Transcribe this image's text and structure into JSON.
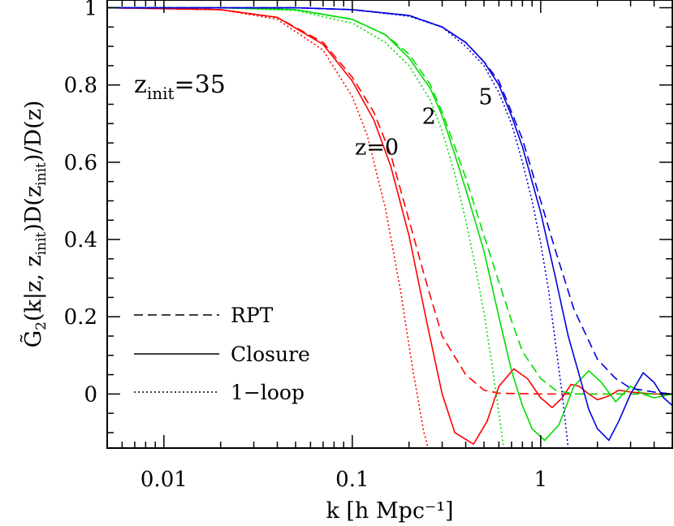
{
  "chart_data": {
    "type": "line",
    "xscale": "log",
    "xlim": [
      0.005,
      5
    ],
    "ylim": [
      -0.14,
      1.02
    ],
    "xlabel": "k [h Mpc⁻¹]",
    "ylabel": {
      "G": "G̃",
      "sub2": "2",
      "p1": "(k|z,  z",
      "init1": "init",
      "p2": ")D(z",
      "init2": "init",
      "p3": ")/D(z)"
    },
    "xticks": [
      {
        "v": 0.01,
        "label": "0.01"
      },
      {
        "v": 0.1,
        "label": "0.1"
      },
      {
        "v": 1,
        "label": "1"
      }
    ],
    "yticks": [
      {
        "v": 0,
        "label": "0"
      },
      {
        "v": 0.2,
        "label": "0.2"
      },
      {
        "v": 0.4,
        "label": "0.4"
      },
      {
        "v": 0.6,
        "label": "0.6"
      },
      {
        "v": 0.8,
        "label": "0.8"
      },
      {
        "v": 1,
        "label": "1"
      }
    ],
    "zinit_label": {
      "z": "z",
      "sub": "init",
      "value": "=35"
    },
    "curve_labels": [
      {
        "text": "z=0",
        "k": 0.135,
        "y": 0.62
      },
      {
        "text": "2",
        "k": 0.255,
        "y": 0.7
      },
      {
        "text": "5",
        "k": 0.51,
        "y": 0.75
      }
    ],
    "legend": {
      "placement": "lower-left",
      "entries": [
        {
          "label": "RPT",
          "dash": "dashed"
        },
        {
          "label": "Closure",
          "dash": "solid"
        },
        {
          "label": "1−loop",
          "dash": "dotted"
        }
      ]
    },
    "colors": {
      "z0": "#ff0000",
      "z2": "#00dd00",
      "z5": "#0000dd"
    },
    "series": [
      {
        "z": "0",
        "method": "RPT",
        "color": "#ff0000",
        "dash": "dashed",
        "points": [
          [
            0.005,
            1.0
          ],
          [
            0.02,
            0.995
          ],
          [
            0.04,
            0.975
          ],
          [
            0.07,
            0.91
          ],
          [
            0.1,
            0.82
          ],
          [
            0.13,
            0.73
          ],
          [
            0.16,
            0.62
          ],
          [
            0.2,
            0.45
          ],
          [
            0.25,
            0.28
          ],
          [
            0.3,
            0.15
          ],
          [
            0.4,
            0.05
          ],
          [
            0.5,
            0.01
          ],
          [
            0.6,
            0.002
          ],
          [
            1,
            0.0
          ],
          [
            5,
            0.0
          ]
        ]
      },
      {
        "z": "0",
        "method": "Closure",
        "color": "#ff0000",
        "dash": "solid",
        "points": [
          [
            0.005,
            1.0
          ],
          [
            0.02,
            0.995
          ],
          [
            0.04,
            0.975
          ],
          [
            0.07,
            0.905
          ],
          [
            0.1,
            0.81
          ],
          [
            0.13,
            0.71
          ],
          [
            0.16,
            0.59
          ],
          [
            0.2,
            0.41
          ],
          [
            0.25,
            0.18
          ],
          [
            0.3,
            0.0
          ],
          [
            0.35,
            -0.1
          ],
          [
            0.44,
            -0.13
          ],
          [
            0.52,
            -0.07
          ],
          [
            0.6,
            0.02
          ],
          [
            0.72,
            0.065
          ],
          [
            0.85,
            0.04
          ],
          [
            1.0,
            -0.01
          ],
          [
            1.15,
            -0.035
          ],
          [
            1.3,
            -0.01
          ],
          [
            1.45,
            0.025
          ],
          [
            1.6,
            0.02
          ],
          [
            1.8,
            0.0
          ],
          [
            2.0,
            -0.015
          ],
          [
            2.3,
            -0.005
          ],
          [
            2.6,
            0.01
          ],
          [
            3.0,
            0.005
          ],
          [
            4.0,
            0.0
          ],
          [
            5.0,
            0.0
          ]
        ]
      },
      {
        "z": "0",
        "method": "1-loop",
        "color": "#ff0000",
        "dash": "dotted",
        "points": [
          [
            0.005,
            1.0
          ],
          [
            0.02,
            0.995
          ],
          [
            0.04,
            0.97
          ],
          [
            0.07,
            0.89
          ],
          [
            0.1,
            0.77
          ],
          [
            0.12,
            0.67
          ],
          [
            0.15,
            0.48
          ],
          [
            0.18,
            0.27
          ],
          [
            0.21,
            0.06
          ],
          [
            0.24,
            -0.1
          ],
          [
            0.26,
            -0.16
          ]
        ]
      },
      {
        "z": "2",
        "method": "RPT",
        "color": "#00dd00",
        "dash": "dashed",
        "points": [
          [
            0.005,
            1.0
          ],
          [
            0.02,
            1.0
          ],
          [
            0.05,
            0.995
          ],
          [
            0.1,
            0.97
          ],
          [
            0.15,
            0.93
          ],
          [
            0.2,
            0.88
          ],
          [
            0.26,
            0.8
          ],
          [
            0.3,
            0.73
          ],
          [
            0.35,
            0.64
          ],
          [
            0.4,
            0.56
          ],
          [
            0.5,
            0.41
          ],
          [
            0.6,
            0.29
          ],
          [
            0.7,
            0.19
          ],
          [
            0.8,
            0.11
          ],
          [
            1.0,
            0.04
          ],
          [
            1.2,
            0.01
          ],
          [
            1.5,
            0.0
          ],
          [
            5.0,
            0.0
          ]
        ]
      },
      {
        "z": "2",
        "method": "Closure",
        "color": "#00dd00",
        "dash": "solid",
        "points": [
          [
            0.005,
            1.0
          ],
          [
            0.02,
            1.0
          ],
          [
            0.05,
            0.995
          ],
          [
            0.1,
            0.97
          ],
          [
            0.15,
            0.93
          ],
          [
            0.2,
            0.87
          ],
          [
            0.26,
            0.79
          ],
          [
            0.3,
            0.72
          ],
          [
            0.35,
            0.62
          ],
          [
            0.4,
            0.53
          ],
          [
            0.5,
            0.37
          ],
          [
            0.6,
            0.2
          ],
          [
            0.7,
            0.06
          ],
          [
            0.8,
            -0.03
          ],
          [
            0.9,
            -0.09
          ],
          [
            1.05,
            -0.12
          ],
          [
            1.25,
            -0.08
          ],
          [
            1.5,
            0.02
          ],
          [
            1.8,
            0.06
          ],
          [
            2.1,
            0.03
          ],
          [
            2.5,
            -0.02
          ],
          [
            3.0,
            0.02
          ],
          [
            3.5,
            0.0
          ],
          [
            4.0,
            -0.01
          ],
          [
            5.0,
            0.0
          ]
        ]
      },
      {
        "z": "2",
        "method": "1-loop",
        "color": "#00dd00",
        "dash": "dotted",
        "points": [
          [
            0.005,
            1.0
          ],
          [
            0.02,
            1.0
          ],
          [
            0.05,
            0.993
          ],
          [
            0.1,
            0.96
          ],
          [
            0.15,
            0.91
          ],
          [
            0.2,
            0.85
          ],
          [
            0.26,
            0.76
          ],
          [
            0.3,
            0.68
          ],
          [
            0.35,
            0.57
          ],
          [
            0.4,
            0.45
          ],
          [
            0.45,
            0.33
          ],
          [
            0.5,
            0.21
          ],
          [
            0.55,
            0.08
          ],
          [
            0.6,
            -0.05
          ],
          [
            0.64,
            -0.15
          ]
        ]
      },
      {
        "z": "5",
        "method": "RPT",
        "color": "#0000dd",
        "dash": "dashed",
        "points": [
          [
            0.005,
            1.0
          ],
          [
            0.05,
            1.0
          ],
          [
            0.1,
            0.995
          ],
          [
            0.2,
            0.98
          ],
          [
            0.3,
            0.95
          ],
          [
            0.4,
            0.91
          ],
          [
            0.5,
            0.86
          ],
          [
            0.6,
            0.81
          ],
          [
            0.7,
            0.73
          ],
          [
            0.8,
            0.66
          ],
          [
            1.0,
            0.5
          ],
          [
            1.2,
            0.37
          ],
          [
            1.5,
            0.22
          ],
          [
            2.0,
            0.09
          ],
          [
            2.5,
            0.04
          ],
          [
            3.0,
            0.015
          ],
          [
            4.0,
            0.005
          ],
          [
            5.0,
            0.0
          ]
        ]
      },
      {
        "z": "5",
        "method": "Closure",
        "color": "#0000dd",
        "dash": "solid",
        "points": [
          [
            0.005,
            1.0
          ],
          [
            0.05,
            1.0
          ],
          [
            0.1,
            0.995
          ],
          [
            0.2,
            0.98
          ],
          [
            0.3,
            0.95
          ],
          [
            0.4,
            0.91
          ],
          [
            0.5,
            0.86
          ],
          [
            0.6,
            0.8
          ],
          [
            0.7,
            0.72
          ],
          [
            0.8,
            0.64
          ],
          [
            1.0,
            0.47
          ],
          [
            1.2,
            0.3
          ],
          [
            1.4,
            0.15
          ],
          [
            1.6,
            0.05
          ],
          [
            1.8,
            -0.04
          ],
          [
            2.0,
            -0.09
          ],
          [
            2.3,
            -0.12
          ],
          [
            2.6,
            -0.07
          ],
          [
            3.0,
            0.0
          ],
          [
            3.5,
            0.055
          ],
          [
            4.0,
            0.03
          ],
          [
            4.5,
            -0.01
          ],
          [
            5.0,
            -0.03
          ]
        ]
      },
      {
        "z": "5",
        "method": "1-loop",
        "color": "#0000dd",
        "dash": "dotted",
        "points": [
          [
            0.005,
            1.0
          ],
          [
            0.05,
            1.0
          ],
          [
            0.1,
            0.995
          ],
          [
            0.2,
            0.978
          ],
          [
            0.3,
            0.95
          ],
          [
            0.4,
            0.9
          ],
          [
            0.5,
            0.85
          ],
          [
            0.6,
            0.78
          ],
          [
            0.7,
            0.7
          ],
          [
            0.8,
            0.6
          ],
          [
            0.9,
            0.5
          ],
          [
            1.0,
            0.39
          ],
          [
            1.1,
            0.27
          ],
          [
            1.2,
            0.13
          ],
          [
            1.3,
            0.0
          ],
          [
            1.4,
            -0.14
          ]
        ]
      }
    ]
  }
}
